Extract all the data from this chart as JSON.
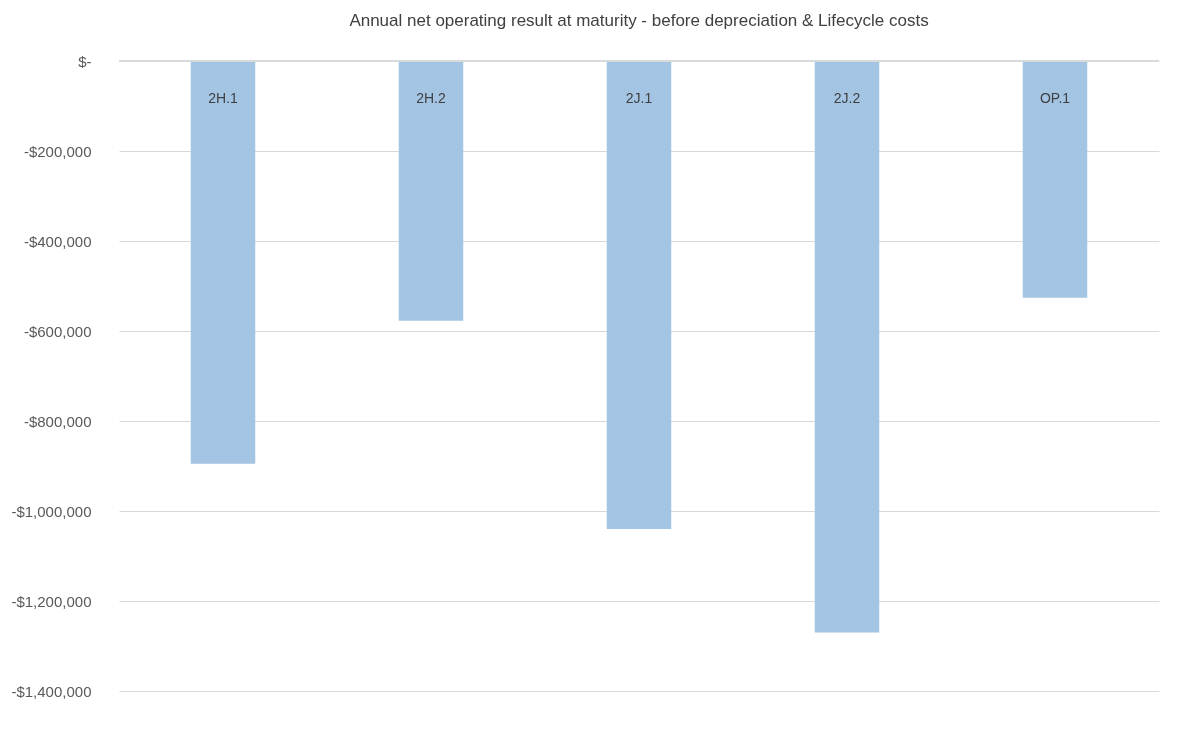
{
  "chart_data": {
    "type": "bar",
    "title": "Annual net operating result at maturity - before depreciation & Lifecycle costs",
    "categories": [
      "2H.1",
      "2H.2",
      "2J.1",
      "2J.2",
      "OP.1"
    ],
    "values": [
      -895000,
      -577000,
      -1040000,
      -1270000,
      -526000
    ],
    "color": "#a3c4e3",
    "ylim": [
      -1400000,
      0
    ],
    "yticks": [
      {
        "value": 0,
        "label": "$-"
      },
      {
        "value": -200000,
        "label": "-$200,000"
      },
      {
        "value": -400000,
        "label": "-$400,000"
      },
      {
        "value": -600000,
        "label": "-$600,000"
      },
      {
        "value": -800000,
        "label": "-$800,000"
      },
      {
        "value": -1000000,
        "label": "-$1,000,000"
      },
      {
        "value": -1200000,
        "label": "-$1,200,000"
      },
      {
        "value": -1400000,
        "label": "-$1,400,000"
      }
    ],
    "grid": "y"
  }
}
